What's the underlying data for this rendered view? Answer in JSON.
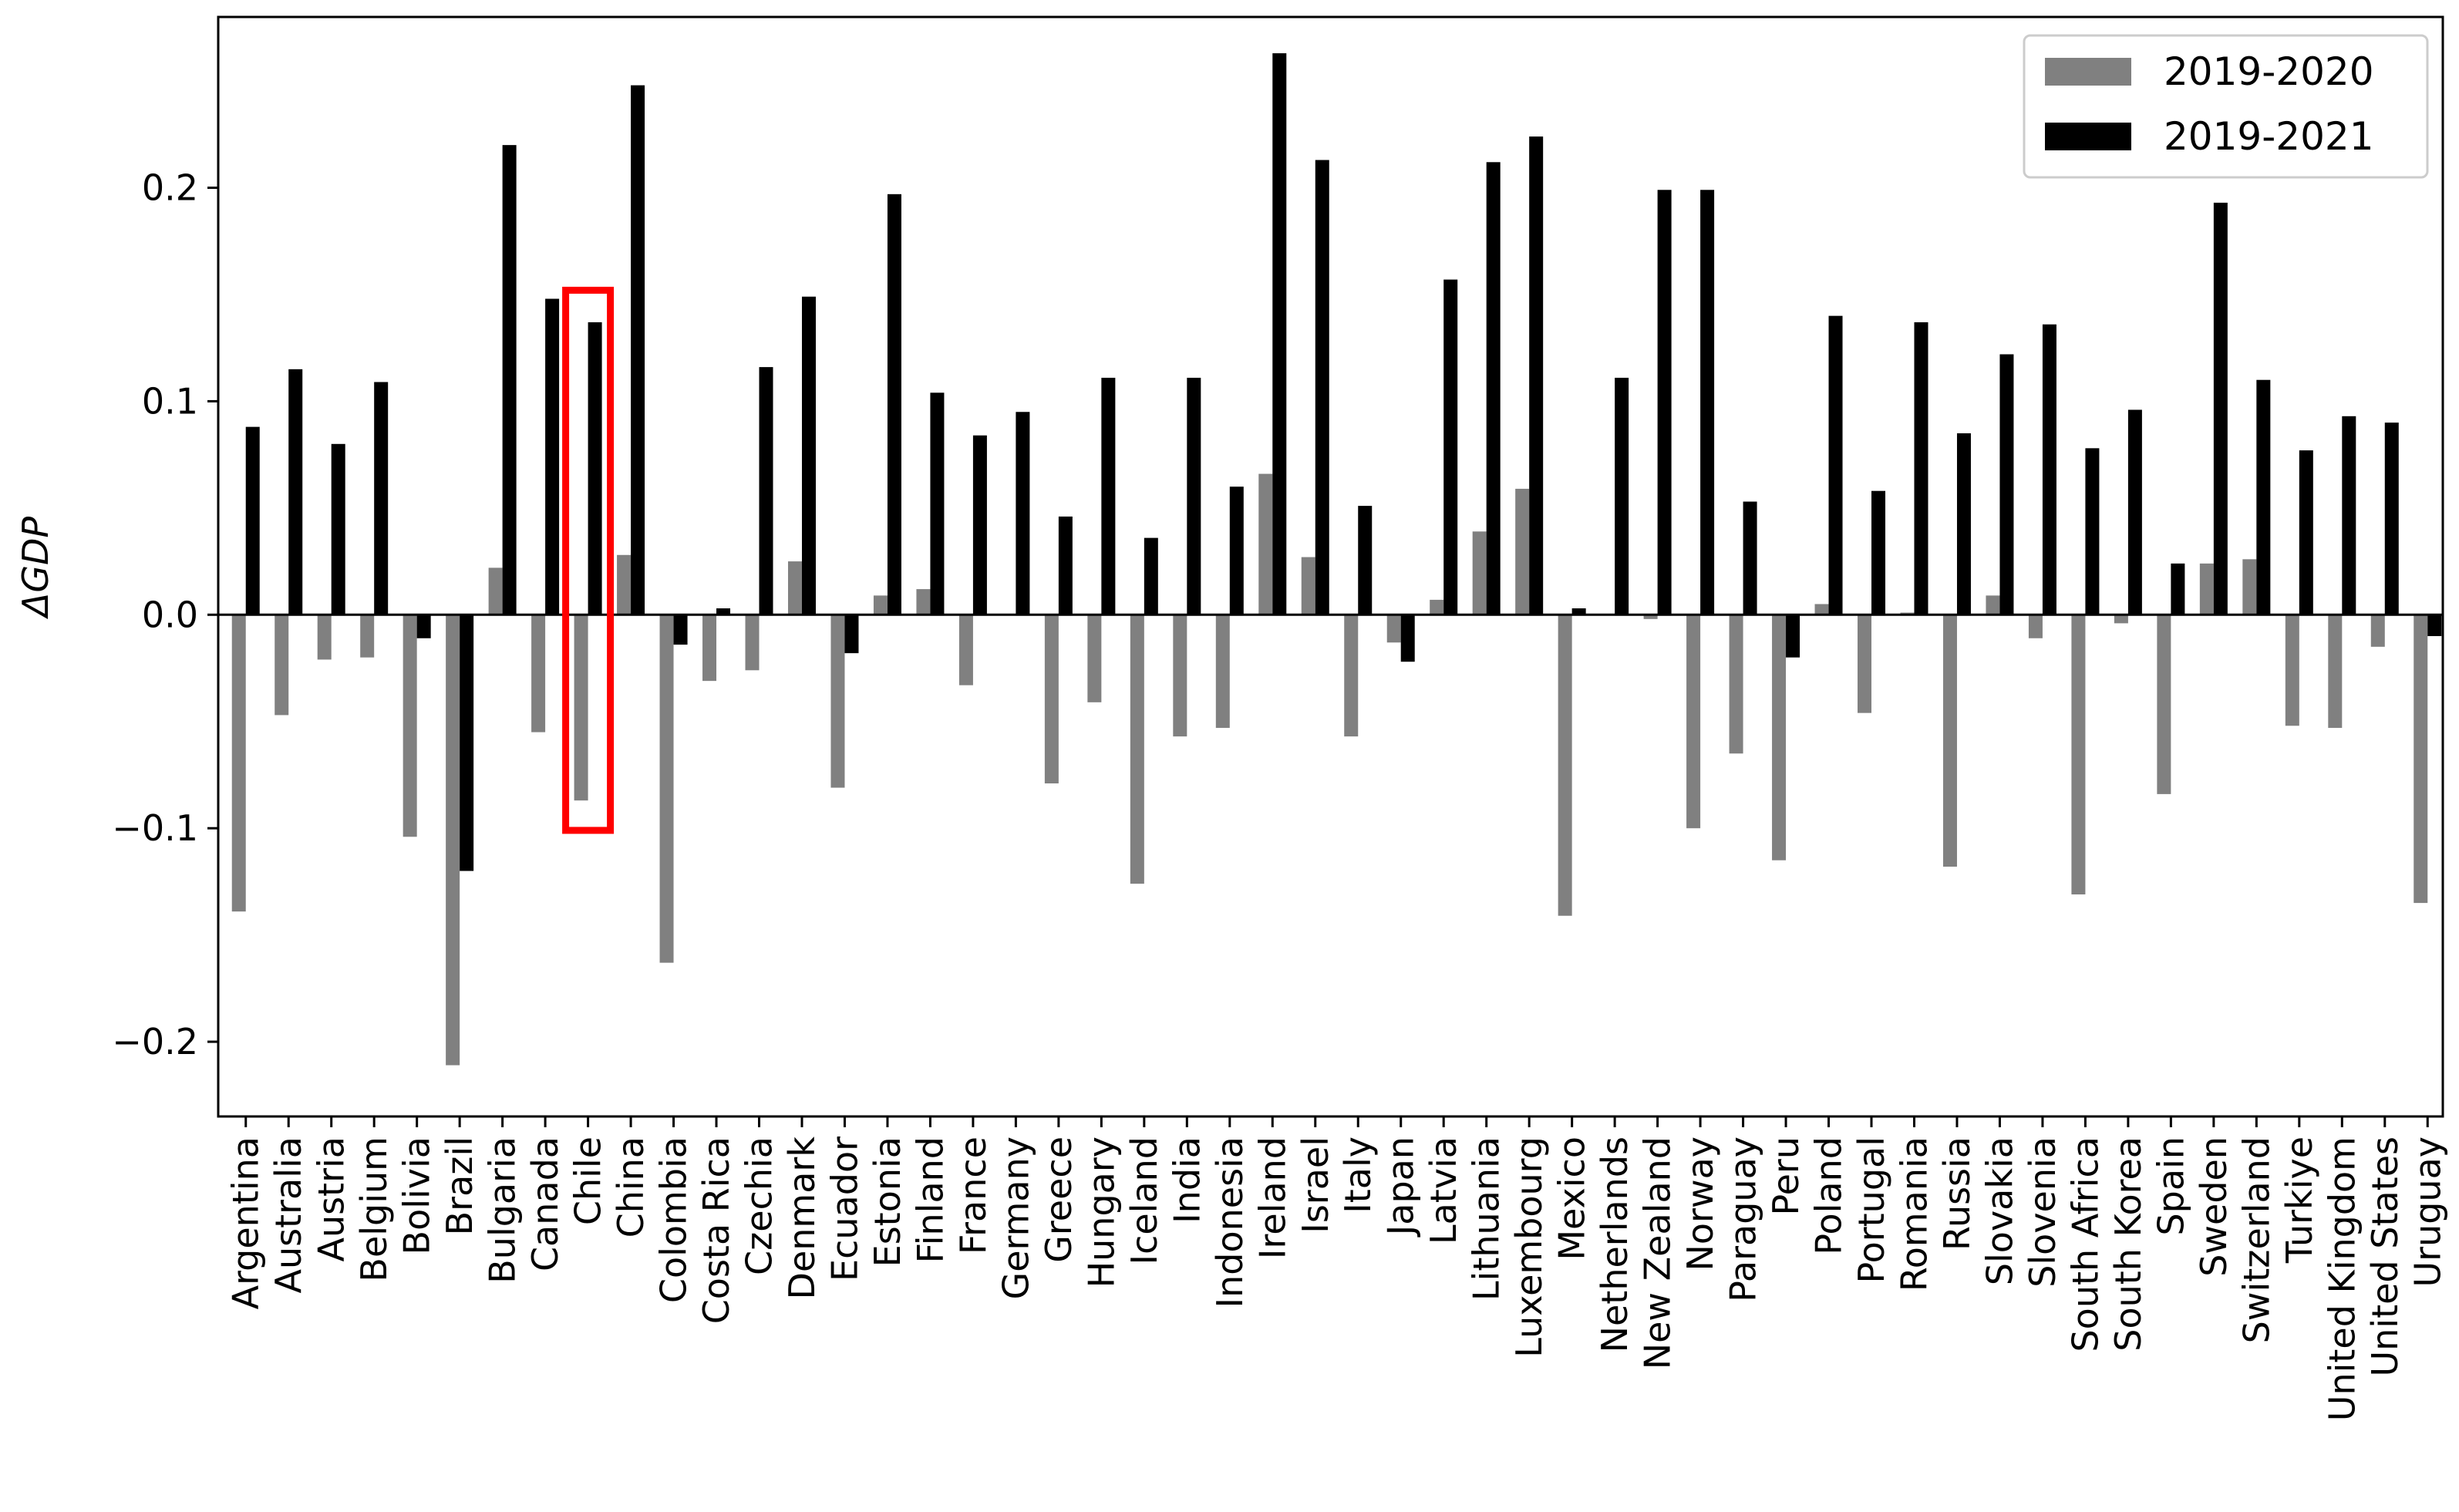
{
  "chart_data": {
    "type": "bar",
    "title": "",
    "xlabel": "",
    "ylabel": "ΔGDP",
    "ylim": [
      -0.235,
      0.28
    ],
    "yticks": [
      -0.2,
      -0.1,
      0.0,
      0.1,
      0.2
    ],
    "ytick_labels": [
      "−0.2",
      "−0.1",
      "0.0",
      "0.1",
      "0.2"
    ],
    "grid": false,
    "legend_position": "top-right",
    "categories": [
      "Argentina",
      "Australia",
      "Austria",
      "Belgium",
      "Bolivia",
      "Brazil",
      "Bulgaria",
      "Canada",
      "Chile",
      "China",
      "Colombia",
      "Costa Rica",
      "Czechia",
      "Denmark",
      "Ecuador",
      "Estonia",
      "Finland",
      "France",
      "Germany",
      "Greece",
      "Hungary",
      "Iceland",
      "India",
      "Indonesia",
      "Ireland",
      "Israel",
      "Italy",
      "Japan",
      "Latvia",
      "Lithuania",
      "Luxembourg",
      "Mexico",
      "Netherlands",
      "New Zealand",
      "Norway",
      "Paraguay",
      "Peru",
      "Poland",
      "Portugal",
      "Romania",
      "Russia",
      "Slovakia",
      "Slovenia",
      "South Africa",
      "South Korea",
      "Spain",
      "Sweden",
      "Switzerland",
      "Turkiye",
      "United Kingdom",
      "United States",
      "Uruguay"
    ],
    "series": [
      {
        "name": "2019-2020",
        "color": "#808080",
        "values": [
          -0.139,
          -0.047,
          -0.021,
          -0.02,
          -0.104,
          -0.211,
          0.022,
          -0.055,
          -0.087,
          0.028,
          -0.163,
          -0.031,
          -0.026,
          0.025,
          -0.081,
          0.009,
          0.012,
          -0.033,
          0.0,
          -0.079,
          -0.041,
          -0.126,
          -0.057,
          -0.053,
          0.066,
          0.027,
          -0.057,
          -0.013,
          0.007,
          0.039,
          0.059,
          -0.141,
          0.0,
          -0.002,
          -0.1,
          -0.065,
          -0.115,
          0.005,
          -0.046,
          0.001,
          -0.118,
          0.009,
          -0.011,
          -0.131,
          -0.004,
          -0.084,
          0.024,
          0.026,
          -0.052,
          -0.053,
          -0.015,
          -0.135
        ]
      },
      {
        "name": "2019-2021",
        "color": "#000000",
        "values": [
          0.088,
          0.115,
          0.08,
          0.109,
          -0.011,
          -0.12,
          0.22,
          0.148,
          0.137,
          0.248,
          -0.014,
          0.003,
          0.116,
          0.149,
          -0.018,
          0.197,
          0.104,
          0.084,
          0.095,
          0.046,
          0.111,
          0.036,
          0.111,
          0.06,
          0.263,
          0.213,
          0.051,
          -0.022,
          0.157,
          0.212,
          0.224,
          0.003,
          0.111,
          0.199,
          0.199,
          0.053,
          -0.02,
          0.14,
          0.058,
          0.137,
          0.085,
          0.122,
          0.136,
          0.078,
          0.096,
          0.024,
          0.193,
          0.11,
          0.077,
          0.093,
          0.09,
          -0.01
        ]
      }
    ],
    "annotations": [
      {
        "type": "highlight-box",
        "category": "Chile",
        "color": "#ff0000",
        "y_range": [
          -0.101,
          0.152
        ]
      }
    ]
  }
}
